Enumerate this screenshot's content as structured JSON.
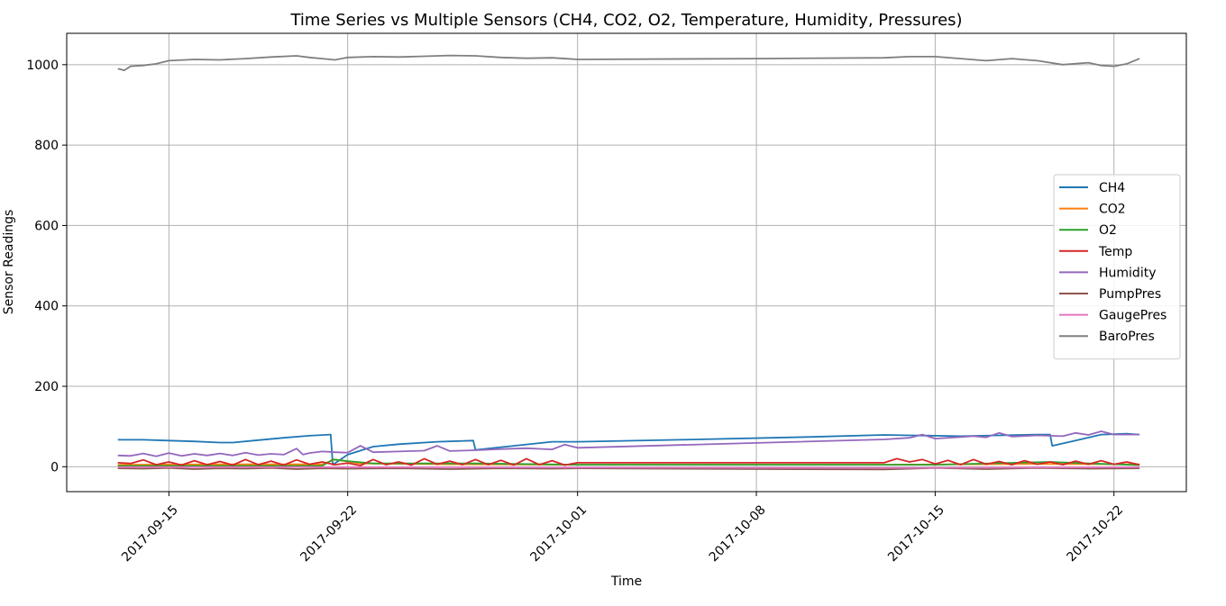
{
  "chart_data": {
    "type": "line",
    "title": "Time Series vs Multiple Sensors (CH4, CO2, O2, Temperature, Humidity, Pressures)",
    "xlabel": "Time",
    "ylabel": "Sensor Readings",
    "x_scale": "date",
    "xlim": [
      "2017-09-11T00:00",
      "2017-10-24T20:00"
    ],
    "ylim": [
      -62,
      1078
    ],
    "x_ticks": [
      "2017-09-15",
      "2017-09-22",
      "2017-10-01",
      "2017-10-08",
      "2017-10-15",
      "2017-10-22"
    ],
    "y_ticks": [
      0,
      200,
      400,
      600,
      800,
      1000
    ],
    "grid": true,
    "legend_position": "center-right",
    "series": [
      {
        "name": "CH4",
        "color": "#1f77b4",
        "points": [
          [
            "2017-09-13T00:00",
            67
          ],
          [
            "2017-09-14T00:00",
            67
          ],
          [
            "2017-09-15T00:00",
            65
          ],
          [
            "2017-09-16T00:00",
            63
          ],
          [
            "2017-09-17T00:00",
            60
          ],
          [
            "2017-09-17T12:00",
            60
          ],
          [
            "2017-09-18T12:00",
            66
          ],
          [
            "2017-09-19T12:00",
            72
          ],
          [
            "2017-09-20T12:00",
            77
          ],
          [
            "2017-09-21T08:00",
            80
          ],
          [
            "2017-09-21T10:00",
            5
          ],
          [
            "2017-09-22T00:00",
            30
          ],
          [
            "2017-09-23T00:00",
            50
          ],
          [
            "2017-09-24T00:00",
            56
          ],
          [
            "2017-09-25T12:00",
            62
          ],
          [
            "2017-09-26T22:00",
            65
          ],
          [
            "2017-09-27T00:00",
            42
          ],
          [
            "2017-09-28T12:00",
            52
          ],
          [
            "2017-09-30T00:00",
            62
          ],
          [
            "2017-10-01T00:00",
            62
          ],
          [
            "2017-10-05T00:00",
            67
          ],
          [
            "2017-10-10T00:00",
            74
          ],
          [
            "2017-10-13T00:00",
            79
          ],
          [
            "2017-10-16T00:00",
            76
          ],
          [
            "2017-10-19T00:00",
            80
          ],
          [
            "2017-10-19T12:00",
            80
          ],
          [
            "2017-10-19T14:00",
            52
          ],
          [
            "2017-10-20T12:00",
            65
          ],
          [
            "2017-10-21T12:00",
            80
          ],
          [
            "2017-10-22T12:00",
            82
          ],
          [
            "2017-10-23T00:00",
            80
          ]
        ]
      },
      {
        "name": "CO2",
        "color": "#ff7f0e",
        "points": [
          [
            "2017-09-13T00:00",
            5
          ],
          [
            "2017-09-17T00:00",
            6
          ],
          [
            "2017-09-21T00:00",
            6
          ],
          [
            "2017-09-21T12:00",
            18
          ],
          [
            "2017-09-22T12:00",
            8
          ],
          [
            "2017-09-26T00:00",
            6
          ],
          [
            "2017-10-01T00:00",
            5
          ],
          [
            "2017-10-13T00:00",
            5
          ],
          [
            "2017-10-19T00:00",
            7
          ],
          [
            "2017-10-23T00:00",
            6
          ]
        ]
      },
      {
        "name": "O2",
        "color": "#2ca02c",
        "points": [
          [
            "2017-09-13T00:00",
            2
          ],
          [
            "2017-09-21T00:00",
            2
          ],
          [
            "2017-09-21T10:00",
            18
          ],
          [
            "2017-09-22T00:00",
            14
          ],
          [
            "2017-09-23T00:00",
            8
          ],
          [
            "2017-09-27T00:00",
            8
          ],
          [
            "2017-10-01T00:00",
            5
          ],
          [
            "2017-10-15T00:00",
            5
          ],
          [
            "2017-10-19T12:00",
            12
          ],
          [
            "2017-10-21T00:00",
            8
          ],
          [
            "2017-10-23T00:00",
            4
          ]
        ]
      },
      {
        "name": "Temp",
        "color": "#d62728",
        "points": [
          [
            "2017-09-13T00:00",
            10
          ],
          [
            "2017-09-13T12:00",
            8
          ],
          [
            "2017-09-14T00:00",
            17
          ],
          [
            "2017-09-14T12:00",
            5
          ],
          [
            "2017-09-15T00:00",
            12
          ],
          [
            "2017-09-15T12:00",
            4
          ],
          [
            "2017-09-16T00:00",
            15
          ],
          [
            "2017-09-16T12:00",
            5
          ],
          [
            "2017-09-17T00:00",
            13
          ],
          [
            "2017-09-17T12:00",
            4
          ],
          [
            "2017-09-18T00:00",
            18
          ],
          [
            "2017-09-18T12:00",
            5
          ],
          [
            "2017-09-19T00:00",
            14
          ],
          [
            "2017-09-19T12:00",
            4
          ],
          [
            "2017-09-20T00:00",
            17
          ],
          [
            "2017-09-20T12:00",
            6
          ],
          [
            "2017-09-21T00:00",
            12
          ],
          [
            "2017-09-21T12:00",
            5
          ],
          [
            "2017-09-22T00:00",
            9
          ],
          [
            "2017-09-22T12:00",
            3
          ],
          [
            "2017-09-23T00:00",
            18
          ],
          [
            "2017-09-23T12:00",
            5
          ],
          [
            "2017-09-24T00:00",
            12
          ],
          [
            "2017-09-24T12:00",
            4
          ],
          [
            "2017-09-25T00:00",
            20
          ],
          [
            "2017-09-25T12:00",
            6
          ],
          [
            "2017-09-26T00:00",
            14
          ],
          [
            "2017-09-26T12:00",
            5
          ],
          [
            "2017-09-27T00:00",
            18
          ],
          [
            "2017-09-27T12:00",
            5
          ],
          [
            "2017-09-28T00:00",
            16
          ],
          [
            "2017-09-28T12:00",
            4
          ],
          [
            "2017-09-29T00:00",
            20
          ],
          [
            "2017-09-29T12:00",
            5
          ],
          [
            "2017-09-30T00:00",
            15
          ],
          [
            "2017-09-30T12:00",
            4
          ],
          [
            "2017-10-01T00:00",
            10
          ],
          [
            "2017-10-13T00:00",
            10
          ],
          [
            "2017-10-13T12:00",
            20
          ],
          [
            "2017-10-14T00:00",
            12
          ],
          [
            "2017-10-14T12:00",
            18
          ],
          [
            "2017-10-15T00:00",
            7
          ],
          [
            "2017-10-15T12:00",
            16
          ],
          [
            "2017-10-16T00:00",
            5
          ],
          [
            "2017-10-16T12:00",
            18
          ],
          [
            "2017-10-17T00:00",
            6
          ],
          [
            "2017-10-17T12:00",
            13
          ],
          [
            "2017-10-18T00:00",
            5
          ],
          [
            "2017-10-18T12:00",
            15
          ],
          [
            "2017-10-19T00:00",
            6
          ],
          [
            "2017-10-19T12:00",
            12
          ],
          [
            "2017-10-20T00:00",
            5
          ],
          [
            "2017-10-20T12:00",
            14
          ],
          [
            "2017-10-21T00:00",
            6
          ],
          [
            "2017-10-21T12:00",
            15
          ],
          [
            "2017-10-22T00:00",
            6
          ],
          [
            "2017-10-22T12:00",
            12
          ],
          [
            "2017-10-23T00:00",
            5
          ]
        ]
      },
      {
        "name": "Humidity",
        "color": "#9467bd",
        "points": [
          [
            "2017-09-13T00:00",
            28
          ],
          [
            "2017-09-13T12:00",
            27
          ],
          [
            "2017-09-14T00:00",
            33
          ],
          [
            "2017-09-14T12:00",
            26
          ],
          [
            "2017-09-15T00:00",
            34
          ],
          [
            "2017-09-15T12:00",
            27
          ],
          [
            "2017-09-16T00:00",
            32
          ],
          [
            "2017-09-16T12:00",
            28
          ],
          [
            "2017-09-17T00:00",
            33
          ],
          [
            "2017-09-17T12:00",
            28
          ],
          [
            "2017-09-18T00:00",
            35
          ],
          [
            "2017-09-18T12:00",
            29
          ],
          [
            "2017-09-19T00:00",
            32
          ],
          [
            "2017-09-19T12:00",
            30
          ],
          [
            "2017-09-20T00:00",
            45
          ],
          [
            "2017-09-20T06:00",
            30
          ],
          [
            "2017-09-20T12:00",
            34
          ],
          [
            "2017-09-21T00:00",
            38
          ],
          [
            "2017-09-21T12:00",
            36
          ],
          [
            "2017-09-22T00:00",
            35
          ],
          [
            "2017-09-22T12:00",
            52
          ],
          [
            "2017-09-23T00:00",
            36
          ],
          [
            "2017-09-24T00:00",
            38
          ],
          [
            "2017-09-25T00:00",
            40
          ],
          [
            "2017-09-25T12:00",
            52
          ],
          [
            "2017-09-26T00:00",
            39
          ],
          [
            "2017-09-27T00:00",
            41
          ],
          [
            "2017-09-28T00:00",
            44
          ],
          [
            "2017-09-29T00:00",
            46
          ],
          [
            "2017-09-30T00:00",
            43
          ],
          [
            "2017-09-30T12:00",
            55
          ],
          [
            "2017-10-01T00:00",
            47
          ],
          [
            "2017-10-13T00:00",
            68
          ],
          [
            "2017-10-14T00:00",
            72
          ],
          [
            "2017-10-14T12:00",
            80
          ],
          [
            "2017-10-15T00:00",
            70
          ],
          [
            "2017-10-16T00:00",
            74
          ],
          [
            "2017-10-16T12:00",
            76
          ],
          [
            "2017-10-17T00:00",
            73
          ],
          [
            "2017-10-17T12:00",
            84
          ],
          [
            "2017-10-18T00:00",
            75
          ],
          [
            "2017-10-19T00:00",
            78
          ],
          [
            "2017-10-20T00:00",
            76
          ],
          [
            "2017-10-20T12:00",
            84
          ],
          [
            "2017-10-21T00:00",
            79
          ],
          [
            "2017-10-21T12:00",
            88
          ],
          [
            "2017-10-22T00:00",
            80
          ],
          [
            "2017-10-23T00:00",
            80
          ]
        ]
      },
      {
        "name": "PumpPres",
        "color": "#8c564b",
        "points": [
          [
            "2017-09-13T00:00",
            -4
          ],
          [
            "2017-09-14T00:00",
            -5
          ],
          [
            "2017-09-15T00:00",
            -3
          ],
          [
            "2017-09-16T00:00",
            -6
          ],
          [
            "2017-09-17T00:00",
            -4
          ],
          [
            "2017-09-18T00:00",
            -5
          ],
          [
            "2017-09-19T00:00",
            -3
          ],
          [
            "2017-09-20T00:00",
            -6
          ],
          [
            "2017-09-21T00:00",
            -4
          ],
          [
            "2017-09-22T00:00",
            -5
          ],
          [
            "2017-09-24T00:00",
            -4
          ],
          [
            "2017-09-26T00:00",
            -6
          ],
          [
            "2017-09-28T00:00",
            -4
          ],
          [
            "2017-09-30T00:00",
            -5
          ],
          [
            "2017-10-01T00:00",
            -4
          ],
          [
            "2017-10-13T00:00",
            -7
          ],
          [
            "2017-10-15T00:00",
            -3
          ],
          [
            "2017-10-17T00:00",
            -6
          ],
          [
            "2017-10-19T00:00",
            -3
          ],
          [
            "2017-10-21T00:00",
            -5
          ],
          [
            "2017-10-23T00:00",
            -4
          ]
        ]
      },
      {
        "name": "GaugePres",
        "color": "#e377c2",
        "points": [
          [
            "2017-09-13T00:00",
            -1
          ],
          [
            "2017-09-21T00:00",
            -1
          ],
          [
            "2017-10-01T00:00",
            -2
          ],
          [
            "2017-10-13T00:00",
            -3
          ],
          [
            "2017-10-23T00:00",
            -1
          ]
        ]
      },
      {
        "name": "BaroPres",
        "color": "#7f7f7f",
        "points": [
          [
            "2017-09-13T00:00",
            990
          ],
          [
            "2017-09-13T06:00",
            986
          ],
          [
            "2017-09-13T12:00",
            996
          ],
          [
            "2017-09-14T00:00",
            998
          ],
          [
            "2017-09-14T12:00",
            1002
          ],
          [
            "2017-09-15T00:00",
            1010
          ],
          [
            "2017-09-16T00:00",
            1013
          ],
          [
            "2017-09-17T00:00",
            1012
          ],
          [
            "2017-09-18T00:00",
            1015
          ],
          [
            "2017-09-19T00:00",
            1019
          ],
          [
            "2017-09-20T00:00",
            1022
          ],
          [
            "2017-09-20T12:00",
            1018
          ],
          [
            "2017-09-21T00:00",
            1015
          ],
          [
            "2017-09-21T12:00",
            1012
          ],
          [
            "2017-09-22T00:00",
            1018
          ],
          [
            "2017-09-23T00:00",
            1020
          ],
          [
            "2017-09-24T00:00",
            1019
          ],
          [
            "2017-09-25T00:00",
            1021
          ],
          [
            "2017-09-26T00:00",
            1023
          ],
          [
            "2017-09-27T00:00",
            1022
          ],
          [
            "2017-09-28T00:00",
            1018
          ],
          [
            "2017-09-29T00:00",
            1016
          ],
          [
            "2017-09-30T00:00",
            1017
          ],
          [
            "2017-10-01T00:00",
            1013
          ],
          [
            "2017-10-08T00:00",
            1015
          ],
          [
            "2017-10-13T00:00",
            1017
          ],
          [
            "2017-10-14T00:00",
            1020
          ],
          [
            "2017-10-15T00:00",
            1020
          ],
          [
            "2017-10-16T00:00",
            1015
          ],
          [
            "2017-10-17T00:00",
            1010
          ],
          [
            "2017-10-18T00:00",
            1015
          ],
          [
            "2017-10-19T00:00",
            1010
          ],
          [
            "2017-10-20T00:00",
            1000
          ],
          [
            "2017-10-21T00:00",
            1005
          ],
          [
            "2017-10-21T12:00",
            998
          ],
          [
            "2017-10-22T00:00",
            996
          ],
          [
            "2017-10-22T12:00",
            1002
          ],
          [
            "2017-10-23T00:00",
            1015
          ]
        ]
      }
    ]
  }
}
